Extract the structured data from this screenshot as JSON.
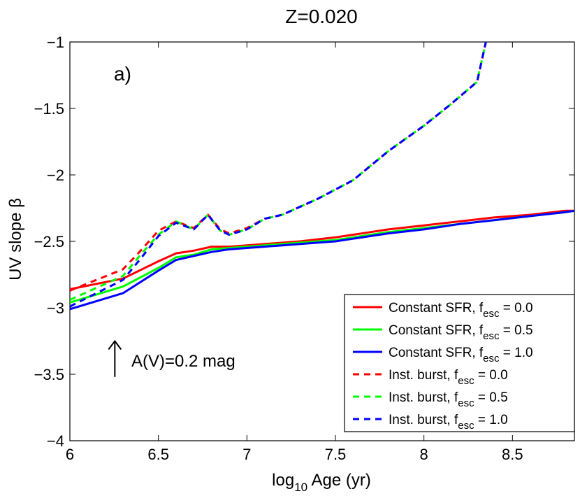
{
  "chart_data": {
    "type": "line",
    "title": "Z=0.020",
    "panel_label": "a)",
    "xlabel": {
      "prefix": "log",
      "subscript": "10",
      "suffix": " Age (yr)"
    },
    "ylabel": "UV slope β",
    "xlim": [
      6,
      8.85
    ],
    "ylim": [
      -4,
      -1
    ],
    "xticks": [
      6,
      6.5,
      7,
      7.5,
      8,
      8.5
    ],
    "xtick_labels": [
      "6",
      "6.5",
      "7",
      "7.5",
      "8",
      "8.5"
    ],
    "yticks": [
      -4,
      -3.5,
      -3,
      -2.5,
      -2,
      -1.5,
      -1
    ],
    "ytick_labels": [
      "−4",
      "−3.5",
      "−3",
      "−2.5",
      "−2",
      "−1.5",
      "−1"
    ],
    "grid": false,
    "legend_position": "bottom-right",
    "annotation": {
      "text": "A(V)=0.2 mag",
      "arrow": "up",
      "x": 6.25,
      "y_from": -3.52,
      "y_to": -3.25
    },
    "series": [
      {
        "name": "Constant SFR",
        "fesc": "0.0",
        "color": "#ff0000",
        "dash": "solid",
        "x": [
          6.0,
          6.3,
          6.5,
          6.6,
          6.7,
          6.8,
          6.9,
          7.0,
          7.1,
          7.2,
          7.3,
          7.5,
          7.6,
          7.7,
          7.8,
          8.0,
          8.2,
          8.4,
          8.6,
          8.8,
          8.85
        ],
        "y": [
          -2.86,
          -2.78,
          -2.65,
          -2.59,
          -2.57,
          -2.54,
          -2.54,
          -2.53,
          -2.52,
          -2.51,
          -2.5,
          -2.47,
          -2.45,
          -2.43,
          -2.41,
          -2.38,
          -2.35,
          -2.32,
          -2.3,
          -2.27,
          -2.27
        ]
      },
      {
        "name": "Constant SFR",
        "fesc": "0.5",
        "color": "#00ff00",
        "dash": "solid",
        "x": [
          6.0,
          6.3,
          6.5,
          6.6,
          6.7,
          6.8,
          6.9,
          7.0,
          7.1,
          7.2,
          7.3,
          7.5,
          7.6,
          7.7,
          7.8,
          8.0,
          8.2,
          8.4,
          8.6,
          8.8,
          8.85
        ],
        "y": [
          -2.96,
          -2.84,
          -2.7,
          -2.62,
          -2.6,
          -2.56,
          -2.55,
          -2.54,
          -2.53,
          -2.52,
          -2.51,
          -2.49,
          -2.47,
          -2.45,
          -2.43,
          -2.4,
          -2.37,
          -2.34,
          -2.31,
          -2.28,
          -2.27
        ]
      },
      {
        "name": "Constant SFR",
        "fesc": "1.0",
        "color": "#0000ff",
        "dash": "solid",
        "x": [
          6.0,
          6.3,
          6.5,
          6.6,
          6.7,
          6.8,
          6.9,
          7.0,
          7.1,
          7.2,
          7.3,
          7.5,
          7.6,
          7.7,
          7.8,
          8.0,
          8.2,
          8.4,
          8.6,
          8.8,
          8.85
        ],
        "y": [
          -3.01,
          -2.89,
          -2.72,
          -2.64,
          -2.61,
          -2.58,
          -2.56,
          -2.55,
          -2.54,
          -2.53,
          -2.52,
          -2.5,
          -2.48,
          -2.46,
          -2.44,
          -2.41,
          -2.37,
          -2.34,
          -2.31,
          -2.28,
          -2.27
        ]
      },
      {
        "name": "Inst. burst",
        "fesc": "0.0",
        "color": "#ff0000",
        "dash": "dashed",
        "x": [
          6.0,
          6.3,
          6.4,
          6.5,
          6.6,
          6.7,
          6.78,
          6.85,
          6.9,
          7.0,
          7.1,
          7.2,
          7.4,
          7.6,
          7.8,
          8.0,
          8.15,
          8.3,
          8.35
        ],
        "y": [
          -2.87,
          -2.71,
          -2.57,
          -2.42,
          -2.35,
          -2.4,
          -2.3,
          -2.41,
          -2.44,
          -2.4,
          -2.33,
          -2.3,
          -2.18,
          -2.04,
          -1.82,
          -1.63,
          -1.47,
          -1.3,
          -1.0
        ]
      },
      {
        "name": "Inst. burst",
        "fesc": "0.5",
        "color": "#00ff00",
        "dash": "dashed",
        "x": [
          6.0,
          6.3,
          6.4,
          6.5,
          6.6,
          6.7,
          6.78,
          6.85,
          6.9,
          7.0,
          7.1,
          7.2,
          7.4,
          7.6,
          7.8,
          8.0,
          8.15,
          8.3,
          8.35
        ],
        "y": [
          -2.94,
          -2.76,
          -2.6,
          -2.45,
          -2.35,
          -2.41,
          -2.3,
          -2.42,
          -2.45,
          -2.41,
          -2.33,
          -2.3,
          -2.18,
          -2.04,
          -1.82,
          -1.63,
          -1.47,
          -1.3,
          -1.0
        ]
      },
      {
        "name": "Inst. burst",
        "fesc": "1.0",
        "color": "#0000ff",
        "dash": "dashed",
        "x": [
          6.0,
          6.3,
          6.4,
          6.5,
          6.6,
          6.7,
          6.78,
          6.85,
          6.9,
          7.0,
          7.1,
          7.2,
          7.4,
          7.6,
          7.8,
          8.0,
          8.15,
          8.3,
          8.35
        ],
        "y": [
          -2.99,
          -2.79,
          -2.63,
          -2.46,
          -2.36,
          -2.41,
          -2.3,
          -2.42,
          -2.45,
          -2.41,
          -2.33,
          -2.3,
          -2.18,
          -2.04,
          -1.82,
          -1.63,
          -1.47,
          -1.3,
          -1.0
        ]
      }
    ]
  },
  "legend": {
    "fesc_symbol": "f",
    "fesc_subscript": "esc",
    "entries": [
      {
        "label": "Constant SFR, ",
        "value": " = 0.0",
        "color": "#ff0000",
        "dash": "solid"
      },
      {
        "label": "Constant SFR, ",
        "value": " = 0.5",
        "color": "#00ff00",
        "dash": "solid"
      },
      {
        "label": "Constant SFR, ",
        "value": " = 1.0",
        "color": "#0000ff",
        "dash": "solid"
      },
      {
        "label": "Inst. burst, ",
        "value": " = 0.0",
        "color": "#ff0000",
        "dash": "dashed"
      },
      {
        "label": "Inst. burst, ",
        "value": " = 0.5",
        "color": "#00ff00",
        "dash": "dashed"
      },
      {
        "label": "Inst. burst, ",
        "value": " = 1.0",
        "color": "#0000ff",
        "dash": "dashed"
      }
    ]
  }
}
